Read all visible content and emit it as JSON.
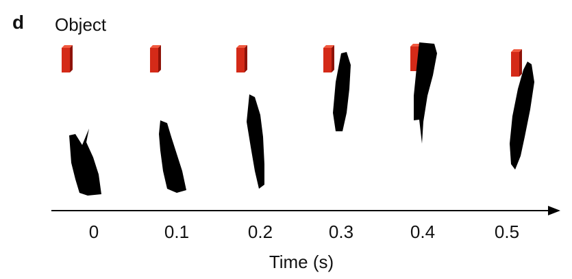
{
  "panel_label": "d",
  "title": "Object",
  "axis": {
    "label": "Time (s)",
    "ticks": [
      "0",
      "0.1",
      "0.2",
      "0.3",
      "0.4",
      "0.5"
    ]
  }
}
